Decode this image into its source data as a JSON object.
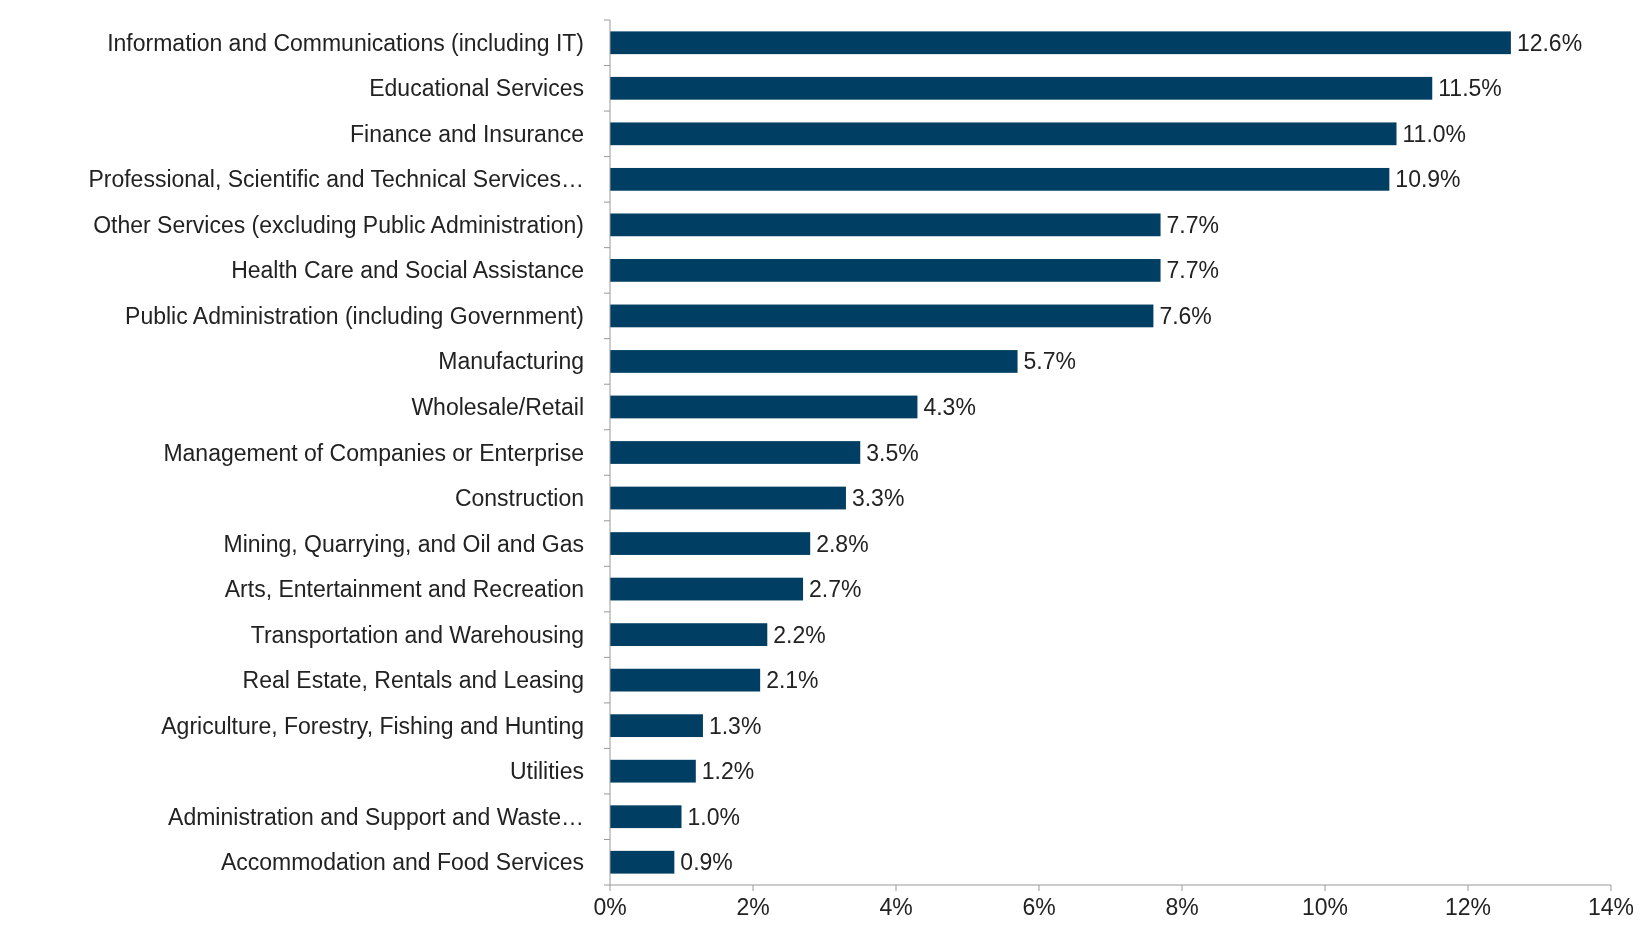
{
  "chart_data": {
    "type": "bar",
    "orientation": "horizontal",
    "categories": [
      "Information and Communications (including IT)",
      "Educational Services",
      "Finance and Insurance",
      "Professional, Scientific and Technical Services…",
      "Other Services (excluding Public Administration)",
      "Health Care and Social Assistance",
      "Public Administration (including Government)",
      "Manufacturing",
      "Wholesale/Retail",
      "Management of Companies or Enterprise",
      "Construction",
      "Mining, Quarrying, and Oil and Gas",
      "Arts, Entertainment and Recreation",
      "Transportation and Warehousing",
      "Real Estate, Rentals and Leasing",
      "Agriculture, Forestry, Fishing and Hunting",
      "Utilities",
      "Administration and Support and Waste…",
      "Accommodation and Food Services"
    ],
    "values": [
      12.6,
      11.5,
      11.0,
      10.9,
      7.7,
      7.7,
      7.6,
      5.7,
      4.3,
      3.5,
      3.3,
      2.8,
      2.7,
      2.2,
      2.1,
      1.3,
      1.2,
      1.0,
      0.9
    ],
    "value_labels": [
      "12.6%",
      "11.5%",
      "11.0%",
      "10.9%",
      "7.7%",
      "7.7%",
      "7.6%",
      "5.7%",
      "4.3%",
      "3.5%",
      "3.3%",
      "2.8%",
      "2.7%",
      "2.2%",
      "2.1%",
      "1.3%",
      "1.2%",
      "1.0%",
      "0.9%"
    ],
    "color": "#003f63",
    "xlim": [
      0,
      14
    ],
    "xticks": [
      {
        "value": 0,
        "label": "0%"
      },
      {
        "value": 2,
        "label": "2%"
      },
      {
        "value": 4,
        "label": "4%"
      },
      {
        "value": 6,
        "label": "6%"
      },
      {
        "value": 8,
        "label": "8%"
      },
      {
        "value": 10,
        "label": "10%"
      },
      {
        "value": 12,
        "label": "12%"
      },
      {
        "value": 14,
        "label": "14%"
      }
    ],
    "grid": false
  }
}
